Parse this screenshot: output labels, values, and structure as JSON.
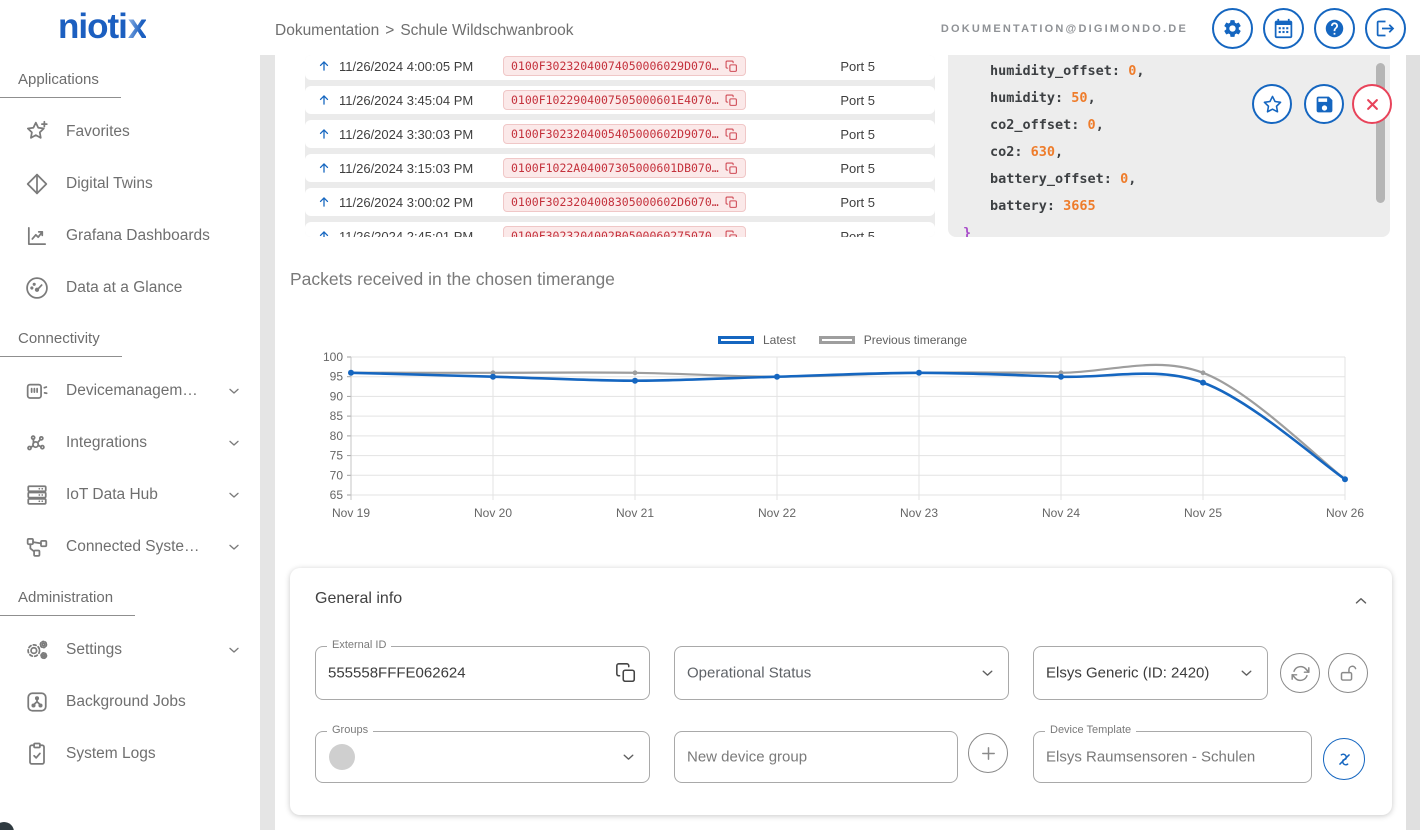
{
  "header": {
    "logo_main": "nioti",
    "logo_accent": "x",
    "breadcrumb": {
      "section": "Dokumentation",
      "separator": ">",
      "page": "Schule Wildschwanbrook"
    },
    "user_email": "DOKUMENTATION@DIGIMONDO.DE"
  },
  "sidebar": {
    "sections": [
      {
        "title": "Applications",
        "items": [
          {
            "label": "Favorites",
            "icon": "favorites-star-icon",
            "expandable": false
          },
          {
            "label": "Digital Twins",
            "icon": "digital-twins-icon",
            "expandable": false
          },
          {
            "label": "Grafana Dashboards",
            "icon": "grafana-chart-icon",
            "expandable": false
          },
          {
            "label": "Data at a Glance",
            "icon": "gauge-icon",
            "expandable": false
          }
        ]
      },
      {
        "title": "Connectivity",
        "items": [
          {
            "label": "Devicemanagem…",
            "icon": "device-management-icon",
            "expandable": true
          },
          {
            "label": "Integrations",
            "icon": "integrations-icon",
            "expandable": true
          },
          {
            "label": "IoT Data Hub",
            "icon": "data-hub-icon",
            "expandable": true
          },
          {
            "label": "Connected Syste…",
            "icon": "connected-systems-icon",
            "expandable": true
          }
        ]
      },
      {
        "title": "Administration",
        "items": [
          {
            "label": "Settings",
            "icon": "settings-gears-icon",
            "expandable": true
          },
          {
            "label": "Background Jobs",
            "icon": "background-jobs-icon",
            "expandable": false
          },
          {
            "label": "System Logs",
            "icon": "system-logs-icon",
            "expandable": false
          }
        ]
      }
    ]
  },
  "packets_table": {
    "rows": [
      {
        "direction": "uplink",
        "timestamp": "11/26/2024 4:00:05 PM",
        "payload": "0100F30232040074050006029D070…",
        "port": "Port 5"
      },
      {
        "direction": "uplink",
        "timestamp": "11/26/2024 3:45:04 PM",
        "payload": "0100F1022904007505000601E4070…",
        "port": "Port 5"
      },
      {
        "direction": "uplink",
        "timestamp": "11/26/2024 3:30:03 PM",
        "payload": "0100F3023204005405000602D9070…",
        "port": "Port 5"
      },
      {
        "direction": "uplink",
        "timestamp": "11/26/2024 3:15:03 PM",
        "payload": "0100F1022A04007305000601DB070…",
        "port": "Port 5"
      },
      {
        "direction": "uplink",
        "timestamp": "11/26/2024 3:00:02 PM",
        "payload": "0100F3023204008305000602D6070…",
        "port": "Port 5"
      },
      {
        "direction": "uplink",
        "timestamp": "11/26/2024 2:45:01 PM",
        "payload": "0100F3023204002B0500060275070…",
        "port": "Port 5"
      }
    ]
  },
  "payload_viewer": {
    "lines": [
      {
        "key": "humidity_offset",
        "value": "0",
        "suffix": ","
      },
      {
        "key": "humidity",
        "value": "50",
        "suffix": ","
      },
      {
        "key": "co2_offset",
        "value": "0",
        "suffix": ","
      },
      {
        "key": "co2",
        "value": "630",
        "suffix": ","
      },
      {
        "key": "battery_offset",
        "value": "0",
        "suffix": ","
      },
      {
        "key": "battery",
        "value": "3665",
        "suffix": ""
      }
    ],
    "closing_brace": "}"
  },
  "chart_data": {
    "type": "line",
    "title": "Packets received in the chosen timerange",
    "x": [
      "Nov 19",
      "Nov 20",
      "Nov 21",
      "Nov 22",
      "Nov 23",
      "Nov 24",
      "Nov 25",
      "Nov 26"
    ],
    "series": [
      {
        "name": "Latest",
        "color": "#1566c0",
        "values": [
          96,
          95,
          94,
          95,
          96,
          95,
          93.5,
          69
        ]
      },
      {
        "name": "Previous timerange",
        "color": "#9e9e9e",
        "values": [
          96,
          96,
          96,
          95,
          96,
          96,
          96,
          69
        ]
      }
    ],
    "ylim": [
      65,
      100
    ],
    "yticks": [
      65,
      70,
      75,
      80,
      85,
      90,
      95,
      100
    ],
    "grid": true,
    "legend_position": "top-right"
  },
  "general_info": {
    "title": "General info",
    "external_id": {
      "label": "External ID",
      "value": "555558FFFE062624"
    },
    "operational_status": {
      "placeholder": "Operational Status"
    },
    "device_type": {
      "value": "Elsys Generic (ID: 2420)"
    },
    "groups": {
      "label": "Groups"
    },
    "new_device_group": {
      "placeholder": "New device group"
    },
    "device_template": {
      "label": "Device Template",
      "value": "Elsys Raumsensoren - Schulen"
    }
  }
}
